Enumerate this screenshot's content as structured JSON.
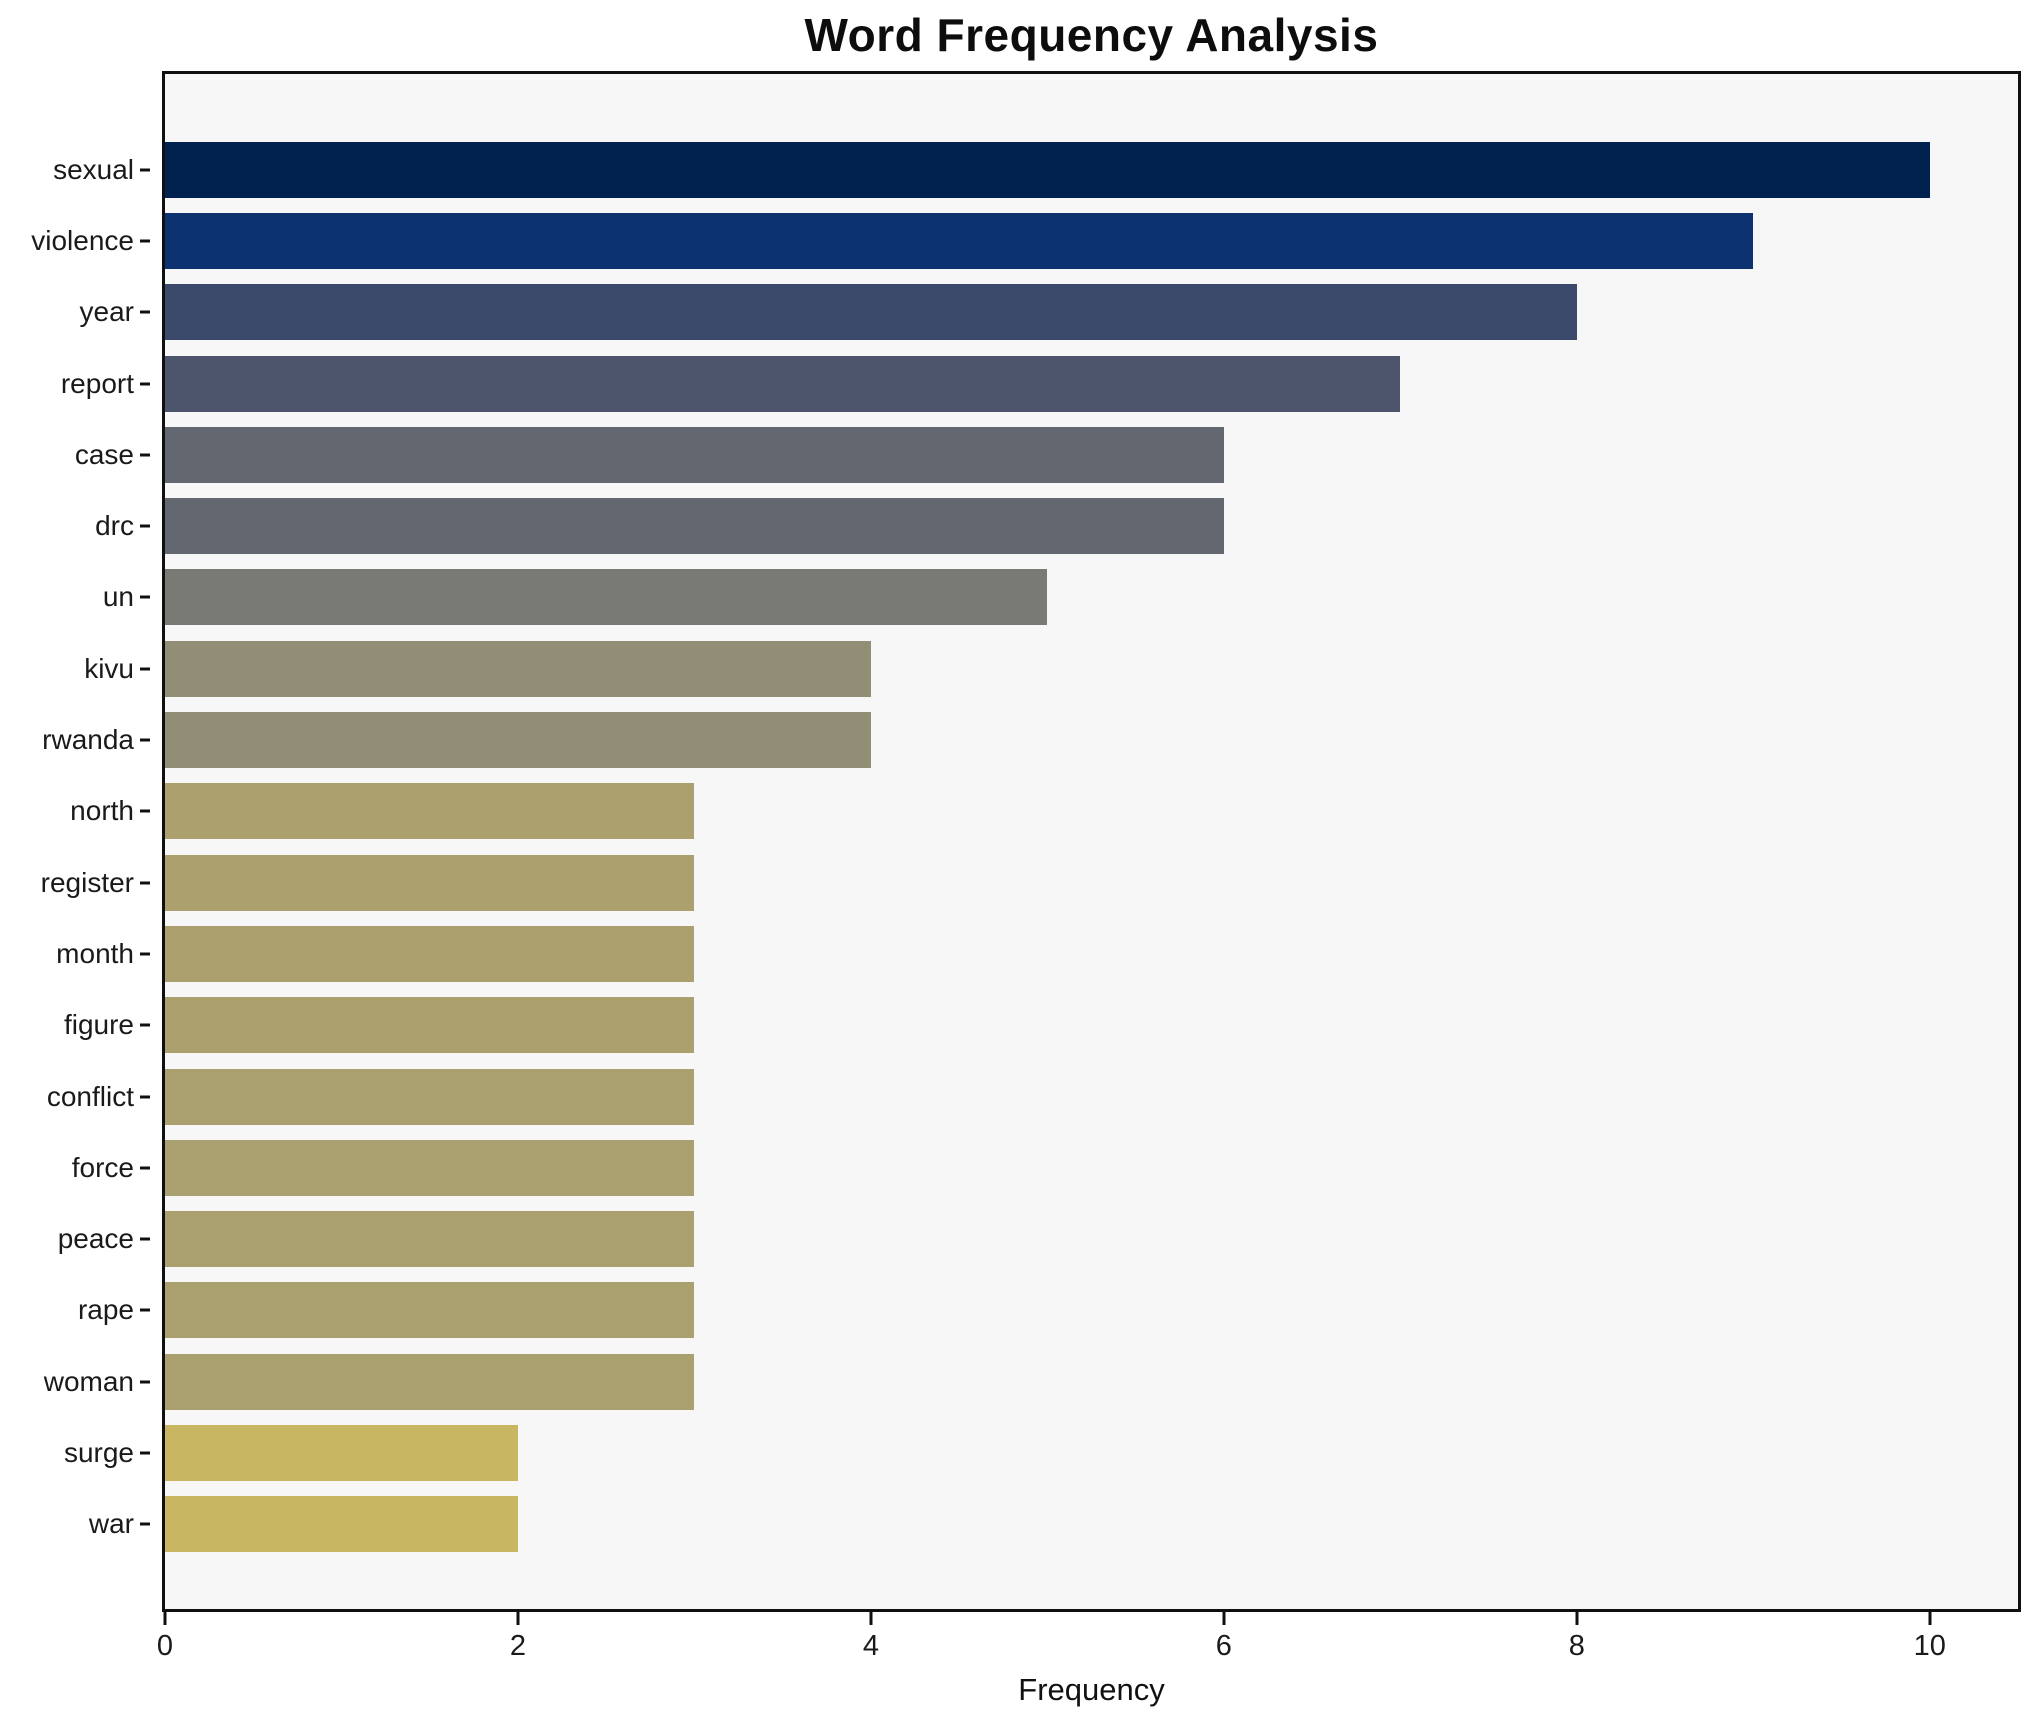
{
  "chart_data": {
    "type": "bar",
    "orientation": "horizontal",
    "title": "Word Frequency Analysis",
    "xlabel": "Frequency",
    "ylabel": "",
    "categories": [
      "sexual",
      "violence",
      "year",
      "report",
      "case",
      "drc",
      "un",
      "kivu",
      "rwanda",
      "north",
      "register",
      "month",
      "figure",
      "conflict",
      "force",
      "peace",
      "rape",
      "woman",
      "surge",
      "war"
    ],
    "values": [
      10,
      9,
      8,
      7,
      6,
      6,
      5,
      4,
      4,
      3,
      3,
      3,
      3,
      3,
      3,
      3,
      3,
      3,
      2,
      2
    ],
    "bar_colors": [
      "#01214e",
      "#0d3270",
      "#3b4a6b",
      "#4c556c",
      "#63676f",
      "#63676f",
      "#7a7a75",
      "#928e76",
      "#928e76",
      "#aca16e",
      "#aca16e",
      "#aca16e",
      "#aca16e",
      "#aba06f",
      "#aba06f",
      "#aba06f",
      "#aba06f",
      "#aba06f",
      "#c8b663",
      "#c8b663"
    ],
    "xlim": [
      0,
      10.5
    ],
    "xticks": [
      "0",
      "2",
      "4",
      "6",
      "8",
      "10"
    ],
    "xtick_values": [
      0,
      2,
      4,
      6,
      8,
      10
    ],
    "grid": false,
    "legend": null,
    "plot_background": "#f7f7f8",
    "figure_background": "#ffffff",
    "spine_color": "#101010",
    "colormap": "cividis"
  }
}
